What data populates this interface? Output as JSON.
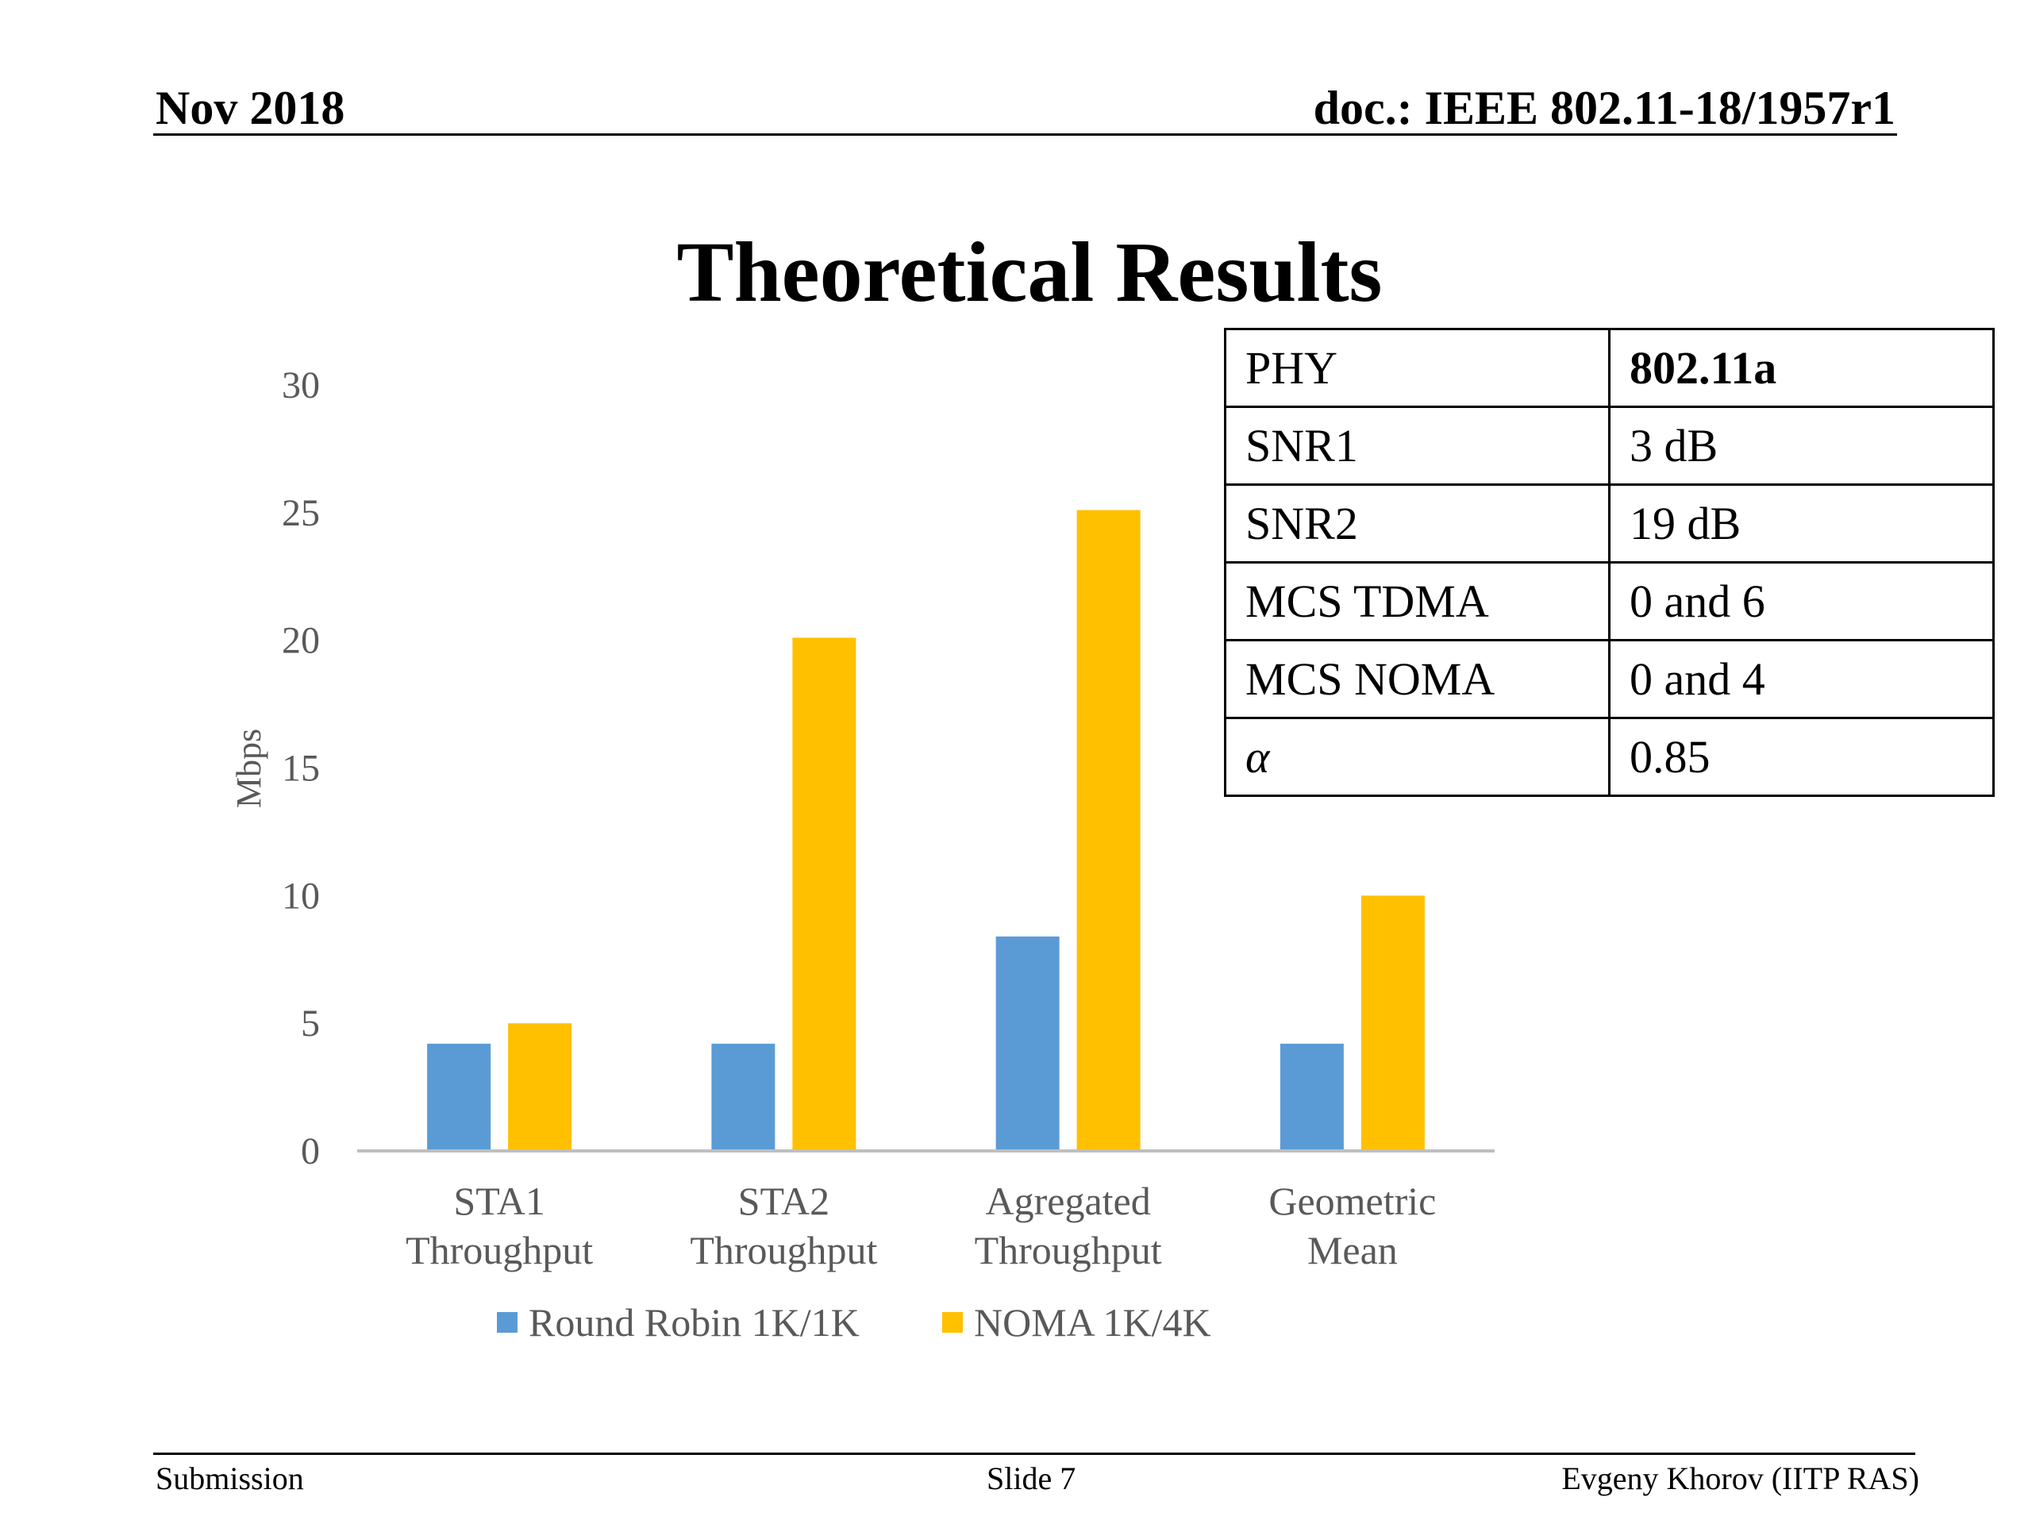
{
  "header": {
    "date": "Nov 2018",
    "doc": "doc.: IEEE 802.11-18/1957r1"
  },
  "slide_title": "Theoretical Results",
  "footer": {
    "left": "Submission",
    "center": "Slide 7",
    "right": "Evgeny Khorov (IITP RAS)"
  },
  "params_table": [
    {
      "name": "PHY",
      "value": "802.11a"
    },
    {
      "name": "SNR1",
      "value": "3 dB"
    },
    {
      "name": "SNR2",
      "value": "19 dB"
    },
    {
      "name": "MCS TDMA",
      "value": "0 and 6"
    },
    {
      "name": "MCS NOMA",
      "value": "0 and 4"
    },
    {
      "name": "α",
      "value": "0.85"
    }
  ],
  "chart_data": {
    "type": "bar",
    "categories": [
      [
        "STA1",
        "Throughput"
      ],
      [
        "STA2",
        "Throughput"
      ],
      [
        "Agregated",
        "Throughput"
      ],
      [
        "Geometric",
        "Mean"
      ]
    ],
    "series": [
      {
        "name": "Round Robin 1K/1K",
        "color": "#5B9BD5",
        "values": [
          4.2,
          4.2,
          8.4,
          4.2
        ]
      },
      {
        "name": "NOMA 1K/4K",
        "color": "#FFC000",
        "values": [
          5.0,
          20.1,
          25.1,
          10.0
        ]
      }
    ],
    "ylabel": "Mbps",
    "ylim": [
      0,
      30
    ],
    "yticks": [
      0,
      5,
      10,
      15,
      20,
      25,
      30
    ],
    "grid": false,
    "legend_position": "bottom"
  }
}
